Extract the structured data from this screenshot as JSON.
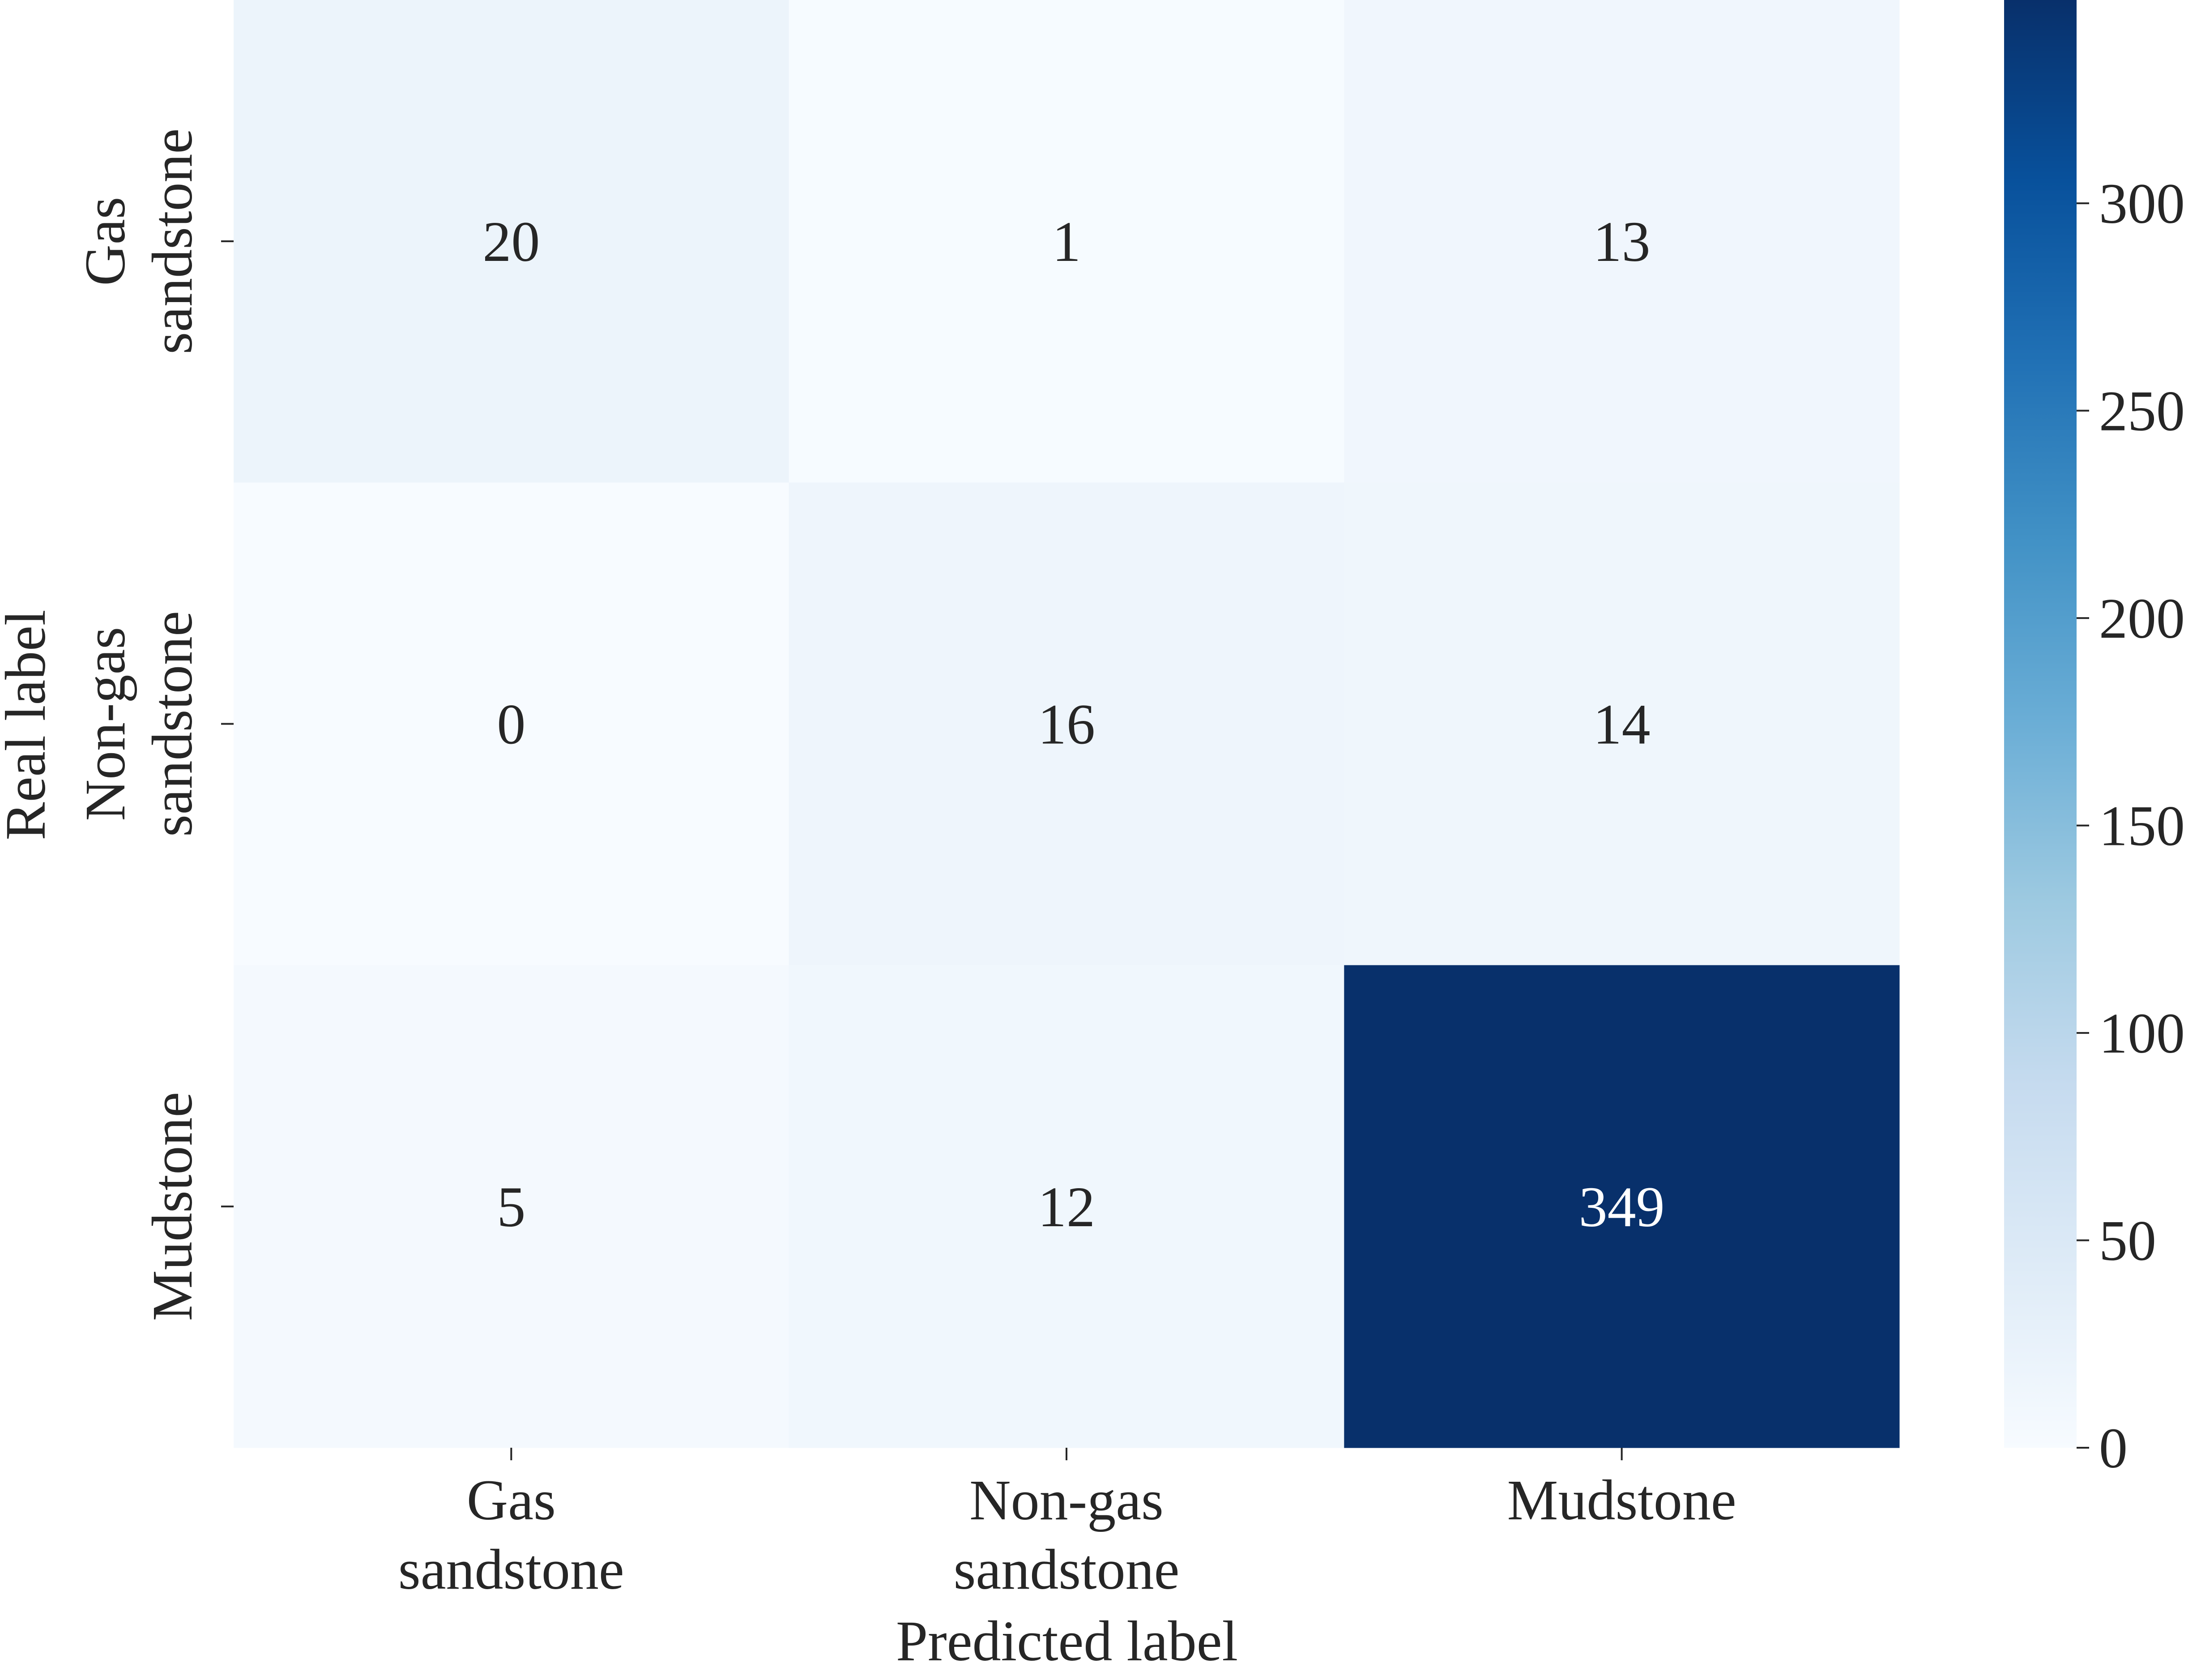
{
  "chart_data": {
    "type": "heatmap",
    "title": "",
    "xlabel": "Predicted label",
    "ylabel": "Real label",
    "x_categories": [
      [
        "Gas",
        "sandstone"
      ],
      [
        "Non-gas",
        "sandstone"
      ],
      [
        "Mudstone"
      ]
    ],
    "y_categories": [
      [
        "Gas",
        "sandstone"
      ],
      [
        "Non-gas",
        "sandstone"
      ],
      [
        "Mudstone"
      ]
    ],
    "matrix": [
      [
        20,
        1,
        13
      ],
      [
        0,
        16,
        14
      ],
      [
        5,
        12,
        349
      ]
    ],
    "colorbar": {
      "colormap": "Blues",
      "vmin": 0,
      "vmax": 349,
      "ticks": [
        0,
        50,
        100,
        150,
        200,
        250,
        300
      ],
      "tick_labels": [
        "0",
        "50",
        "100",
        "150",
        "200",
        "250",
        "300"
      ]
    },
    "colors": {
      "min": "#f7fbff",
      "max": "#08306b",
      "text_dark": "#262626",
      "text_light": "#ffffff"
    }
  }
}
